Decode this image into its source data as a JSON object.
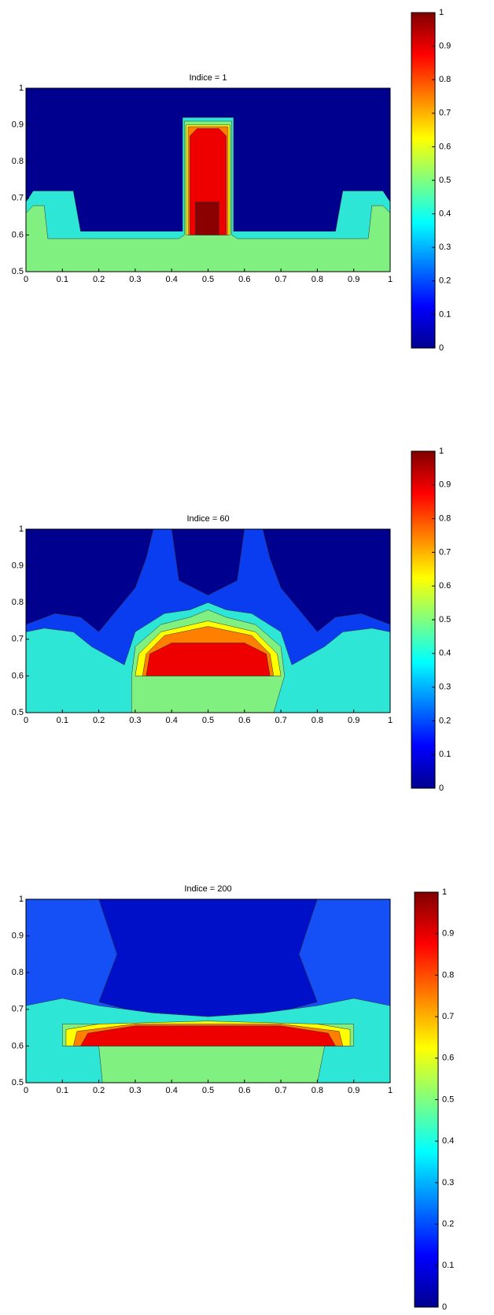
{
  "chart_data": [
    {
      "type": "contour",
      "title": "Indice = 1",
      "xlim": [
        0,
        1
      ],
      "ylim": [
        0.5,
        1
      ],
      "xticks": [
        0,
        0.1,
        0.2,
        0.3,
        0.4,
        0.5,
        0.6,
        0.7,
        0.8,
        0.9,
        1
      ],
      "yticks": [
        0.5,
        0.6,
        0.7,
        0.8,
        0.9,
        1
      ],
      "colorbar": {
        "colormap": "jet",
        "lim": [
          0,
          1
        ],
        "ticks": [
          0,
          0.1,
          0.2,
          0.3,
          0.4,
          0.5,
          0.6,
          0.7,
          0.8,
          0.9,
          1
        ]
      }
    },
    {
      "type": "contour",
      "title": "Indice = 60",
      "xlim": [
        0,
        1
      ],
      "ylim": [
        0.5,
        1
      ],
      "xticks": [
        0,
        0.1,
        0.2,
        0.3,
        0.4,
        0.5,
        0.6,
        0.7,
        0.8,
        0.9,
        1
      ],
      "yticks": [
        0.5,
        0.6,
        0.7,
        0.8,
        0.9,
        1
      ],
      "colorbar": {
        "colormap": "jet",
        "lim": [
          0,
          1
        ],
        "ticks": [
          0,
          0.1,
          0.2,
          0.3,
          0.4,
          0.5,
          0.6,
          0.7,
          0.8,
          0.9,
          1
        ]
      }
    },
    {
      "type": "contour",
      "title": "Indice = 200",
      "xlim": [
        0,
        1
      ],
      "ylim": [
        0.5,
        1
      ],
      "xticks": [
        0,
        0.1,
        0.2,
        0.3,
        0.4,
        0.5,
        0.6,
        0.7,
        0.8,
        0.9,
        1
      ],
      "yticks": [
        0.5,
        0.6,
        0.7,
        0.8,
        0.9,
        1
      ],
      "colorbar": {
        "colormap": "jet",
        "lim": [
          0,
          1
        ],
        "ticks": [
          0,
          0.1,
          0.2,
          0.3,
          0.4,
          0.5,
          0.6,
          0.7,
          0.8,
          0.9,
          1
        ]
      }
    }
  ]
}
